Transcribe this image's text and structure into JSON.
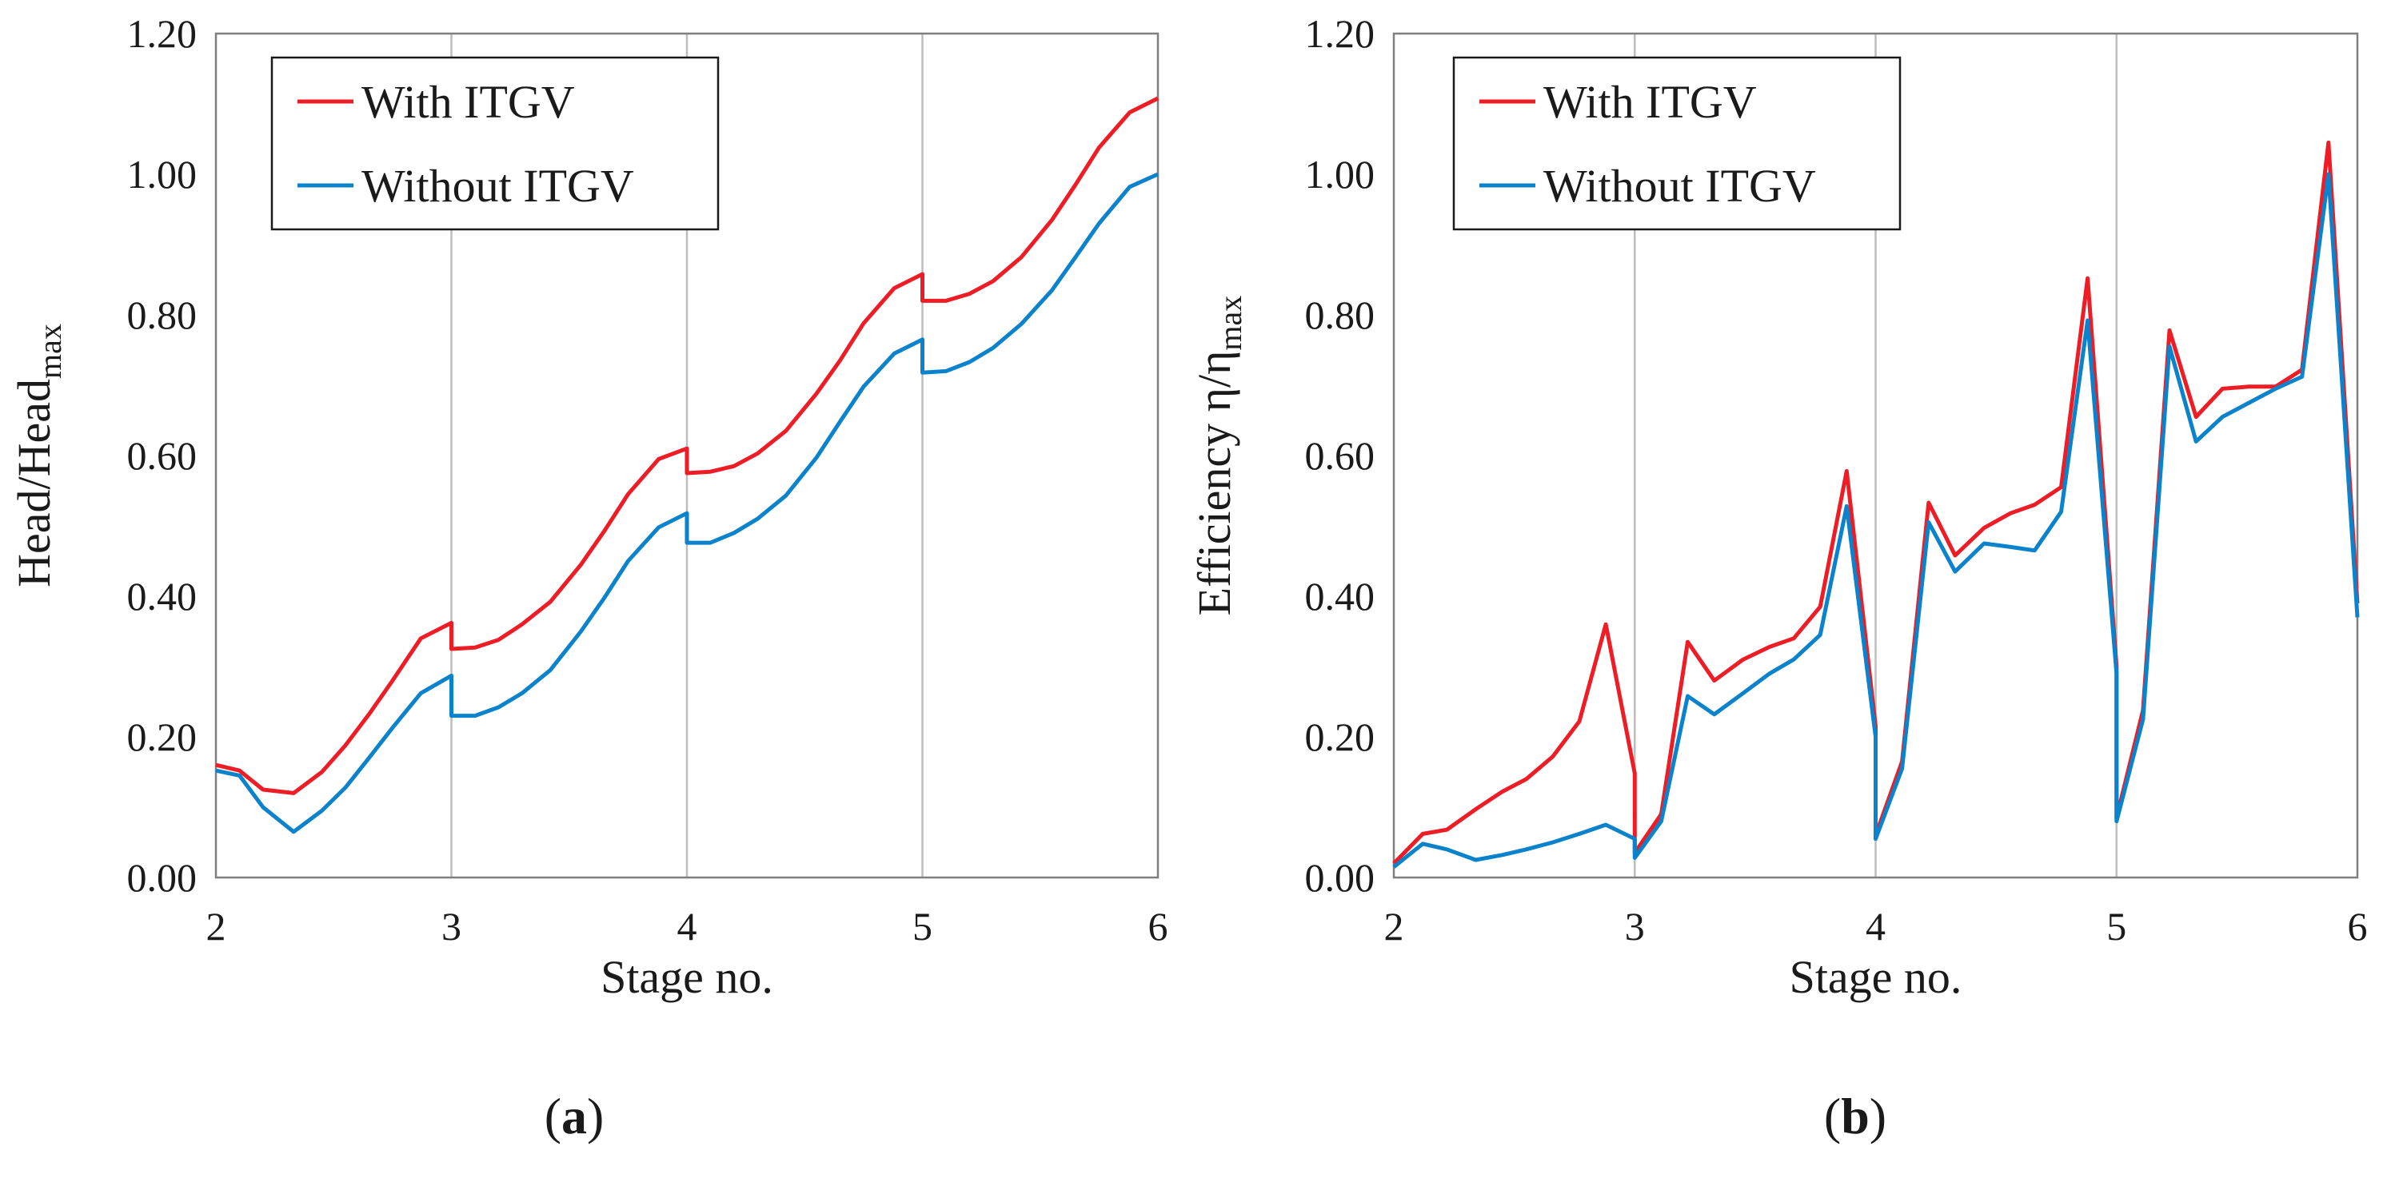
{
  "chart_data": [
    {
      "type": "line",
      "panel_label": "(a)",
      "xlabel": "Stage no.",
      "ylabel": "Head/Head",
      "ylabel_sub": "max",
      "xlim": [
        2,
        6
      ],
      "ylim": [
        0,
        1.2
      ],
      "xticks": [
        "2",
        "3",
        "4",
        "5",
        "6"
      ],
      "yticks": [
        "0.00",
        "0.20",
        "0.40",
        "0.60",
        "0.80",
        "1.00",
        "1.20"
      ],
      "grid": "vertical at stages 3, 4, 5",
      "legend": "top-left",
      "series": [
        {
          "name": "With ITGV",
          "color": "#ee1c25",
          "points": [
            [
              2.0,
              0.16
            ],
            [
              2.1,
              0.152
            ],
            [
              2.2,
              0.125
            ],
            [
              2.33,
              0.12
            ],
            [
              2.45,
              0.15
            ],
            [
              2.55,
              0.188
            ],
            [
              2.65,
              0.232
            ],
            [
              2.75,
              0.28
            ],
            [
              2.87,
              0.34
            ],
            [
              3.0,
              0.362
            ],
            [
              3.0,
              0.325
            ],
            [
              3.1,
              0.327
            ],
            [
              3.2,
              0.338
            ],
            [
              3.3,
              0.36
            ],
            [
              3.42,
              0.392
            ],
            [
              3.55,
              0.445
            ],
            [
              3.65,
              0.493
            ],
            [
              3.75,
              0.545
            ],
            [
              3.88,
              0.595
            ],
            [
              4.0,
              0.61
            ],
            [
              4.0,
              0.575
            ],
            [
              4.1,
              0.577
            ],
            [
              4.2,
              0.585
            ],
            [
              4.3,
              0.603
            ],
            [
              4.42,
              0.635
            ],
            [
              4.55,
              0.688
            ],
            [
              4.65,
              0.735
            ],
            [
              4.75,
              0.788
            ],
            [
              4.88,
              0.838
            ],
            [
              5.0,
              0.858
            ],
            [
              5.0,
              0.82
            ],
            [
              5.1,
              0.82
            ],
            [
              5.2,
              0.83
            ],
            [
              5.3,
              0.848
            ],
            [
              5.42,
              0.882
            ],
            [
              5.55,
              0.935
            ],
            [
              5.65,
              0.985
            ],
            [
              5.75,
              1.038
            ],
            [
              5.88,
              1.088
            ],
            [
              6.0,
              1.108
            ]
          ]
        },
        {
          "name": "Without ITGV",
          "color": "#0a82cc",
          "points": [
            [
              2.0,
              0.152
            ],
            [
              2.1,
              0.145
            ],
            [
              2.2,
              0.1
            ],
            [
              2.33,
              0.065
            ],
            [
              2.45,
              0.095
            ],
            [
              2.55,
              0.128
            ],
            [
              2.65,
              0.17
            ],
            [
              2.75,
              0.213
            ],
            [
              2.87,
              0.262
            ],
            [
              3.0,
              0.287
            ],
            [
              3.0,
              0.23
            ],
            [
              3.1,
              0.23
            ],
            [
              3.2,
              0.242
            ],
            [
              3.3,
              0.262
            ],
            [
              3.42,
              0.295
            ],
            [
              3.55,
              0.35
            ],
            [
              3.65,
              0.398
            ],
            [
              3.75,
              0.45
            ],
            [
              3.88,
              0.498
            ],
            [
              4.0,
              0.518
            ],
            [
              4.0,
              0.476
            ],
            [
              4.1,
              0.476
            ],
            [
              4.2,
              0.49
            ],
            [
              4.3,
              0.51
            ],
            [
              4.42,
              0.543
            ],
            [
              4.55,
              0.597
            ],
            [
              4.65,
              0.648
            ],
            [
              4.75,
              0.698
            ],
            [
              4.88,
              0.745
            ],
            [
              5.0,
              0.765
            ],
            [
              5.0,
              0.718
            ],
            [
              5.1,
              0.72
            ],
            [
              5.2,
              0.733
            ],
            [
              5.3,
              0.753
            ],
            [
              5.42,
              0.787
            ],
            [
              5.55,
              0.835
            ],
            [
              5.65,
              0.882
            ],
            [
              5.75,
              0.93
            ],
            [
              5.88,
              0.982
            ],
            [
              6.0,
              1.0
            ]
          ]
        }
      ]
    },
    {
      "type": "line",
      "panel_label": "(b)",
      "xlabel": "Stage no.",
      "ylabel": "Efficiency η/η",
      "ylabel_sub": "max",
      "xlim": [
        2,
        6
      ],
      "ylim": [
        0,
        1.2
      ],
      "xticks": [
        "2",
        "3",
        "4",
        "5",
        "6"
      ],
      "yticks": [
        "0.00",
        "0.20",
        "0.40",
        "0.60",
        "0.80",
        "1.00",
        "1.20"
      ],
      "grid": "vertical at stages 3, 4, 5",
      "legend": "top-left",
      "series": [
        {
          "name": "With ITGV",
          "color": "#ee1c25",
          "points": [
            [
              2.0,
              0.02
            ],
            [
              2.12,
              0.062
            ],
            [
              2.22,
              0.068
            ],
            [
              2.34,
              0.097
            ],
            [
              2.45,
              0.122
            ],
            [
              2.55,
              0.14
            ],
            [
              2.66,
              0.172
            ],
            [
              2.77,
              0.222
            ],
            [
              2.88,
              0.36
            ],
            [
              3.0,
              0.148
            ],
            [
              3.0,
              0.035
            ],
            [
              3.11,
              0.09
            ],
            [
              3.22,
              0.335
            ],
            [
              3.33,
              0.28
            ],
            [
              3.45,
              0.31
            ],
            [
              3.56,
              0.328
            ],
            [
              3.66,
              0.34
            ],
            [
              3.77,
              0.385
            ],
            [
              3.88,
              0.578
            ],
            [
              4.0,
              0.215
            ],
            [
              4.0,
              0.06
            ],
            [
              4.11,
              0.165
            ],
            [
              4.22,
              0.533
            ],
            [
              4.33,
              0.458
            ],
            [
              4.45,
              0.497
            ],
            [
              4.56,
              0.518
            ],
            [
              4.66,
              0.53
            ],
            [
              4.77,
              0.555
            ],
            [
              4.88,
              0.852
            ],
            [
              5.0,
              0.3
            ],
            [
              5.0,
              0.085
            ],
            [
              5.11,
              0.238
            ],
            [
              5.22,
              0.778
            ],
            [
              5.33,
              0.655
            ],
            [
              5.44,
              0.695
            ],
            [
              5.55,
              0.698
            ],
            [
              5.66,
              0.698
            ],
            [
              5.77,
              0.722
            ],
            [
              5.88,
              1.045
            ],
            [
              6.0,
              0.39
            ]
          ]
        },
        {
          "name": "Without ITGV",
          "color": "#0a82cc",
          "points": [
            [
              2.0,
              0.015
            ],
            [
              2.12,
              0.048
            ],
            [
              2.22,
              0.04
            ],
            [
              2.34,
              0.025
            ],
            [
              2.45,
              0.032
            ],
            [
              2.55,
              0.04
            ],
            [
              2.66,
              0.05
            ],
            [
              2.77,
              0.062
            ],
            [
              2.88,
              0.075
            ],
            [
              3.0,
              0.055
            ],
            [
              3.0,
              0.028
            ],
            [
              3.11,
              0.08
            ],
            [
              3.22,
              0.258
            ],
            [
              3.33,
              0.232
            ],
            [
              3.45,
              0.262
            ],
            [
              3.56,
              0.29
            ],
            [
              3.66,
              0.31
            ],
            [
              3.77,
              0.345
            ],
            [
              3.88,
              0.528
            ],
            [
              4.0,
              0.2
            ],
            [
              4.0,
              0.055
            ],
            [
              4.11,
              0.155
            ],
            [
              4.22,
              0.505
            ],
            [
              4.33,
              0.435
            ],
            [
              4.45,
              0.475
            ],
            [
              4.56,
              0.47
            ],
            [
              4.66,
              0.465
            ],
            [
              4.77,
              0.52
            ],
            [
              4.88,
              0.792
            ],
            [
              5.0,
              0.29
            ],
            [
              5.0,
              0.08
            ],
            [
              5.11,
              0.225
            ],
            [
              5.22,
              0.755
            ],
            [
              5.33,
              0.62
            ],
            [
              5.44,
              0.655
            ],
            [
              5.55,
              0.675
            ],
            [
              5.66,
              0.695
            ],
            [
              5.77,
              0.712
            ],
            [
              5.88,
              1.0
            ],
            [
              6.0,
              0.37
            ]
          ]
        }
      ]
    }
  ]
}
